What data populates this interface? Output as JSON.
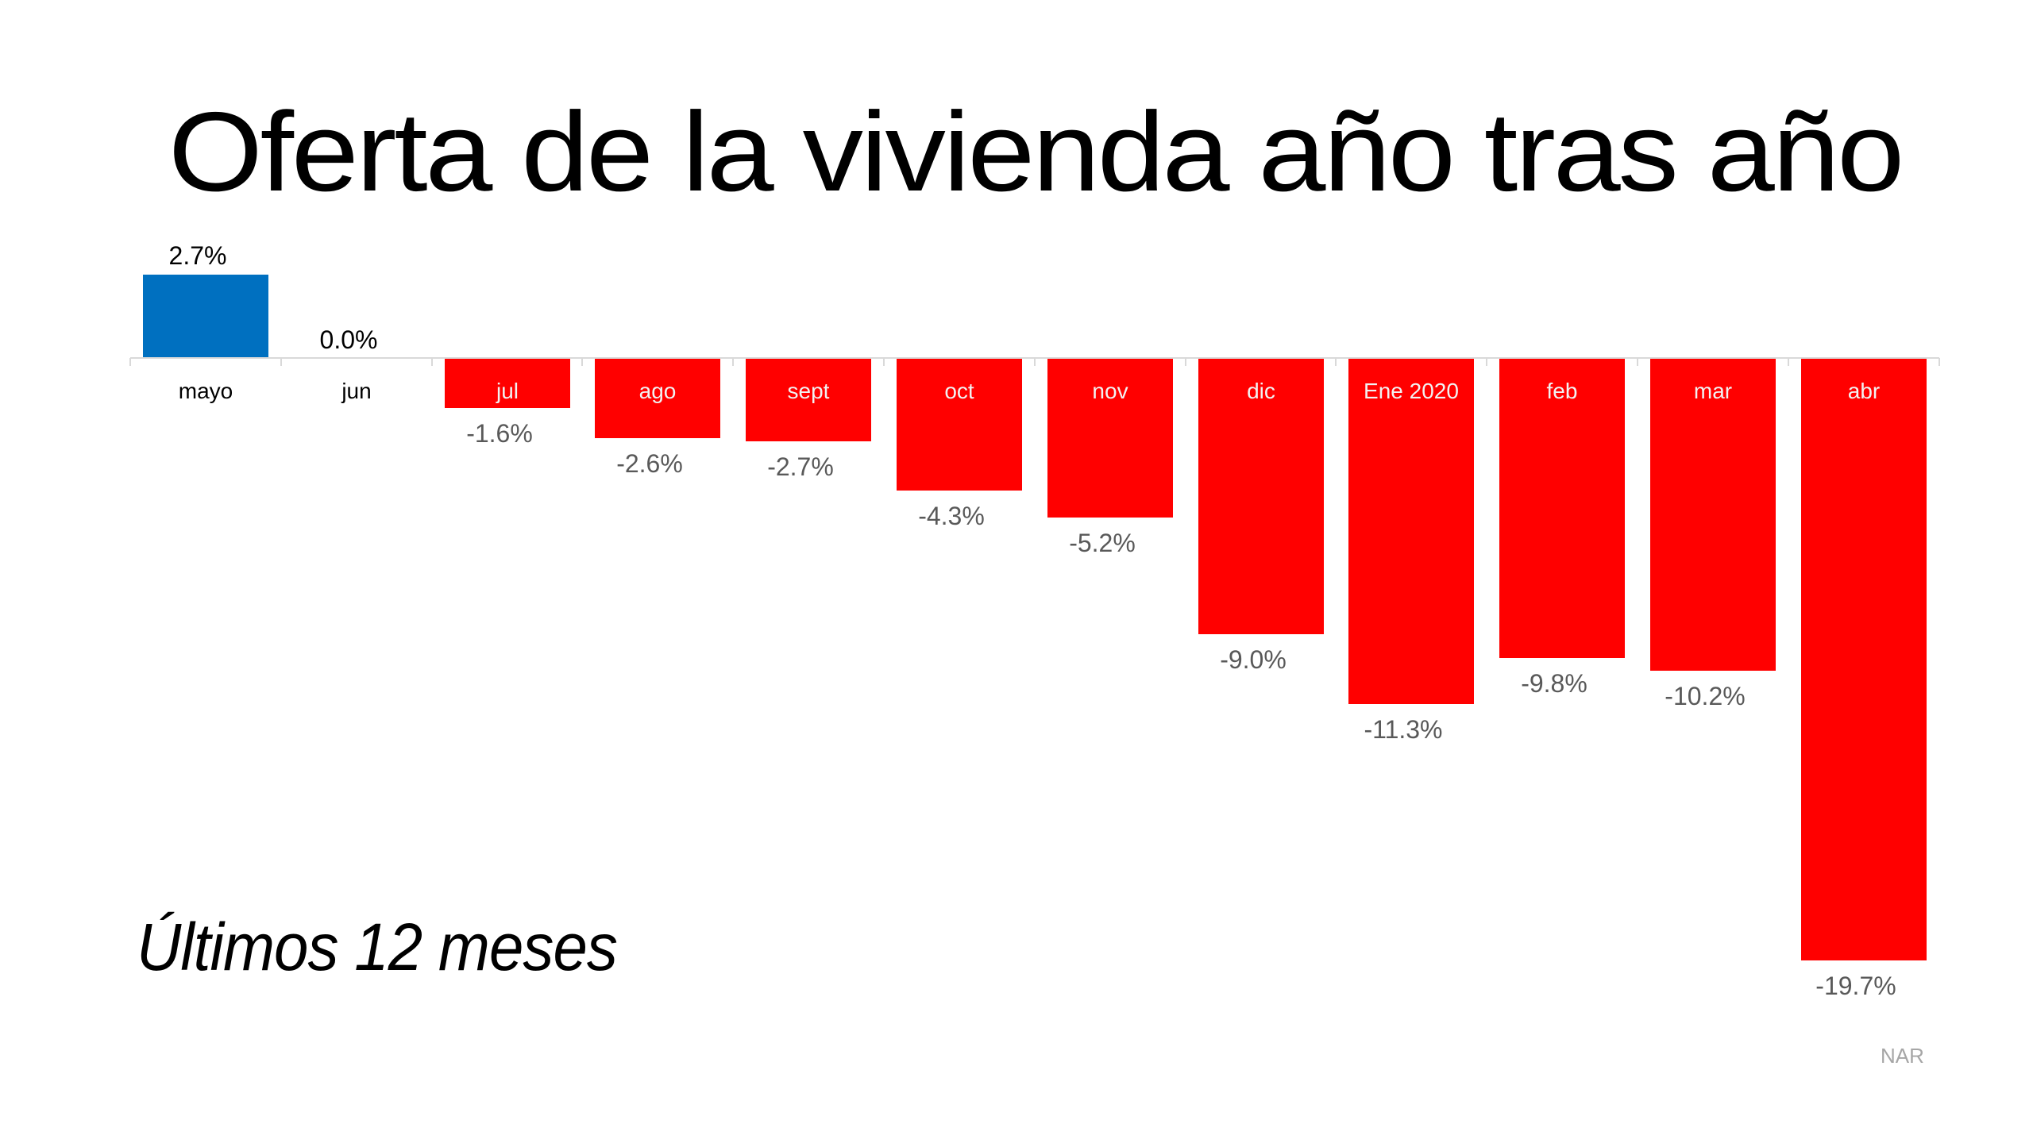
{
  "slide": {
    "title": "Oferta de la vivienda año tras año",
    "subtitle": "Últimos 12 meses",
    "source": "NAR"
  },
  "colors": {
    "positive": "#0070C0",
    "negative": "#FF0000",
    "axis": "#D9D9D9",
    "label_dark": "#000000",
    "label_gray": "#595959",
    "label_on_bar": "#F2F2F2",
    "source_text": "#A6A6A6"
  },
  "chart_data": {
    "type": "bar",
    "title": "Oferta de la vivienda año tras año",
    "subtitle": "Últimos 12 meses",
    "categories": [
      "mayo",
      "jun",
      "jul",
      "ago",
      "sept",
      "oct",
      "nov",
      "dic",
      "Ene 2020",
      "feb",
      "mar",
      "abr"
    ],
    "values": [
      2.7,
      0.0,
      -1.6,
      -2.6,
      -2.7,
      -4.3,
      -5.2,
      -9.0,
      -11.3,
      -9.8,
      -10.2,
      -19.7
    ],
    "value_labels": [
      "2.7%",
      "0.0%",
      "-1.6%",
      "-2.6%",
      "-2.7%",
      "-4.3%",
      "-5.2%",
      "-9.0%",
      "-11.3%",
      "-9.8%",
      "-10.2%",
      "-19.7%"
    ],
    "xlabel": "",
    "ylabel": "",
    "ylim": [
      -20,
      3
    ],
    "grid": false,
    "legend": null,
    "source": "NAR"
  }
}
